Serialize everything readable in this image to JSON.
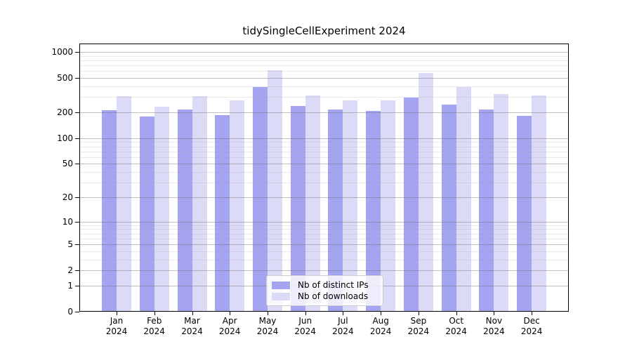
{
  "title": "tidySingleCellExperiment 2024",
  "legend": {
    "items": [
      {
        "label": "Nb of distinct IPs",
        "color": "#a4a4f0"
      },
      {
        "label": "Nb of downloads",
        "color": "#dbdbf8"
      }
    ]
  },
  "y_axis": {
    "tick_labels": [
      "1000",
      "500",
      "200",
      "100",
      "50",
      "20",
      "10",
      "5",
      "2",
      "1",
      "0"
    ]
  },
  "x_axis": {
    "tick_labels": [
      "Jan 2024",
      "Feb 2024",
      "Mar 2024",
      "Apr 2024",
      "May 2024",
      "Jun 2024",
      "Jul 2024",
      "Aug 2024",
      "Sep 2024",
      "Oct 2024",
      "Nov 2024",
      "Dec 2024"
    ]
  },
  "chart_data": {
    "type": "bar",
    "title": "tidySingleCellExperiment 2024",
    "categories": [
      "Jan 2024",
      "Feb 2024",
      "Mar 2024",
      "Apr 2024",
      "May 2024",
      "Jun 2024",
      "Jul 2024",
      "Aug 2024",
      "Sep 2024",
      "Oct 2024",
      "Nov 2024",
      "Dec 2024"
    ],
    "series": [
      {
        "name": "Nb of distinct IPs",
        "color": "#a4a4f0",
        "values": [
          211,
          180,
          217,
          185,
          392,
          238,
          214,
          206,
          298,
          246,
          214,
          182
        ]
      },
      {
        "name": "Nb of downloads",
        "color": "#dbdbf8",
        "values": [
          308,
          233,
          305,
          276,
          614,
          313,
          276,
          274,
          574,
          395,
          325,
          315
        ]
      }
    ],
    "xlabel": "",
    "ylabel": "",
    "yscale": "log1p",
    "ylim": [
      0,
      1250
    ],
    "yticks": [
      0,
      1,
      2,
      5,
      10,
      20,
      50,
      100,
      200,
      500,
      1000
    ],
    "yticks_minor": [
      3,
      4,
      6,
      7,
      8,
      9,
      30,
      40,
      60,
      70,
      80,
      90,
      300,
      400,
      600,
      700,
      800,
      900
    ],
    "grid": true,
    "legend_position": "lower center",
    "colors": {
      "major_grid": "#bcbcbc",
      "minor_grid": "#e4e4e4",
      "axis": "#000000",
      "background": "#ffffff"
    }
  }
}
